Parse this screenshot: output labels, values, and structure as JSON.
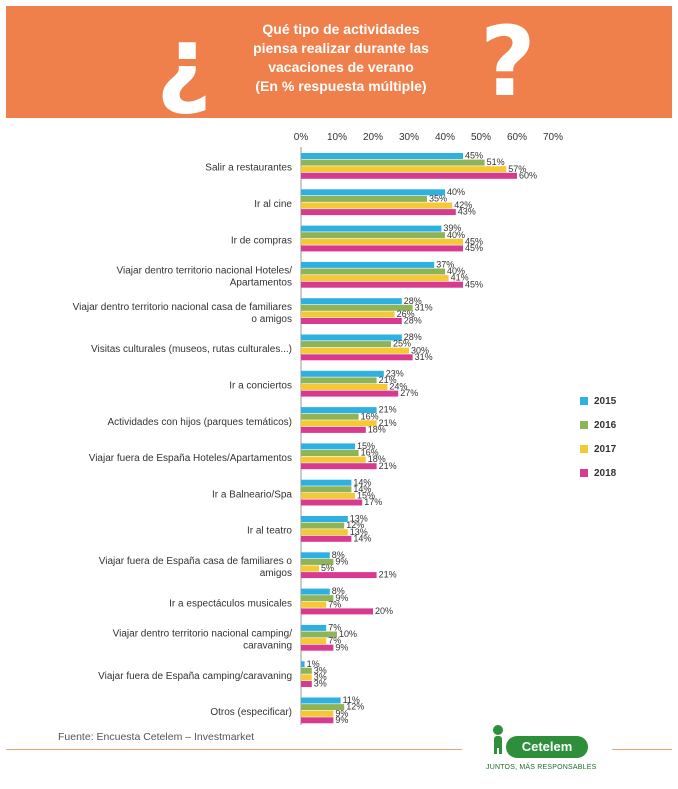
{
  "header": {
    "title_lines": [
      "Qué tipo de actividades",
      "piensa realizar durante las",
      "vacaciones de verano",
      "(En % respuesta múltiple)"
    ],
    "open_question_mark": "¿",
    "close_question_mark": "?"
  },
  "colors": {
    "header_bg": "#f0804b",
    "2015": "#2eb1e0",
    "2016": "#8fb457",
    "2017": "#f5c936",
    "2018": "#d83a8f"
  },
  "chart_data": {
    "type": "bar",
    "orientation": "horizontal",
    "xlim": [
      0,
      70
    ],
    "xticks": [
      "0%",
      "10%",
      "20%",
      "30%",
      "40%",
      "50%",
      "60%",
      "70%"
    ],
    "legend_position": "right",
    "categories": [
      [
        "Salir a restaurantes"
      ],
      [
        "Ir al cine"
      ],
      [
        "Ir de compras"
      ],
      [
        "Viajar dentro territorio nacional Hoteles/",
        "Apartamentos"
      ],
      [
        "Viajar dentro territorio nacional casa de familiares",
        "o amigos"
      ],
      [
        "Visitas culturales (museos, rutas culturales...)"
      ],
      [
        "Ir a conciertos"
      ],
      [
        "Actividades con hijos (parques temáticos)"
      ],
      [
        "Viajar fuera de España Hoteles/Apartamentos"
      ],
      [
        "Ir a Balneario/Spa"
      ],
      [
        "Ir al teatro"
      ],
      [
        "Viajar fuera de España casa de familiares o",
        "amigos"
      ],
      [
        "Ir a espectáculos musicales"
      ],
      [
        "Viajar dentro territorio nacional camping/",
        "caravaning"
      ],
      [
        "Viajar fuera de España camping/caravaning"
      ],
      [
        "Otros (especificar)"
      ]
    ],
    "series": [
      {
        "name": "2015",
        "values": [
          45,
          40,
          39,
          37,
          28,
          28,
          23,
          21,
          15,
          14,
          13,
          8,
          8,
          7,
          1,
          11
        ]
      },
      {
        "name": "2016",
        "values": [
          51,
          35,
          40,
          40,
          31,
          25,
          21,
          16,
          16,
          14,
          12,
          9,
          9,
          10,
          3,
          12
        ]
      },
      {
        "name": "2017",
        "values": [
          57,
          42,
          45,
          41,
          26,
          30,
          24,
          21,
          18,
          15,
          13,
          5,
          7,
          7,
          3,
          9
        ]
      },
      {
        "name": "2018",
        "values": [
          60,
          43,
          45,
          45,
          28,
          31,
          27,
          18,
          21,
          17,
          14,
          21,
          20,
          9,
          3,
          9
        ]
      }
    ]
  },
  "footer": {
    "source": "Fuente: Encuesta Cetelem – Investmarket",
    "logo_name": "Cetelem",
    "logo_tagline": "JUNTOS, MÁS RESPONSABLES"
  }
}
